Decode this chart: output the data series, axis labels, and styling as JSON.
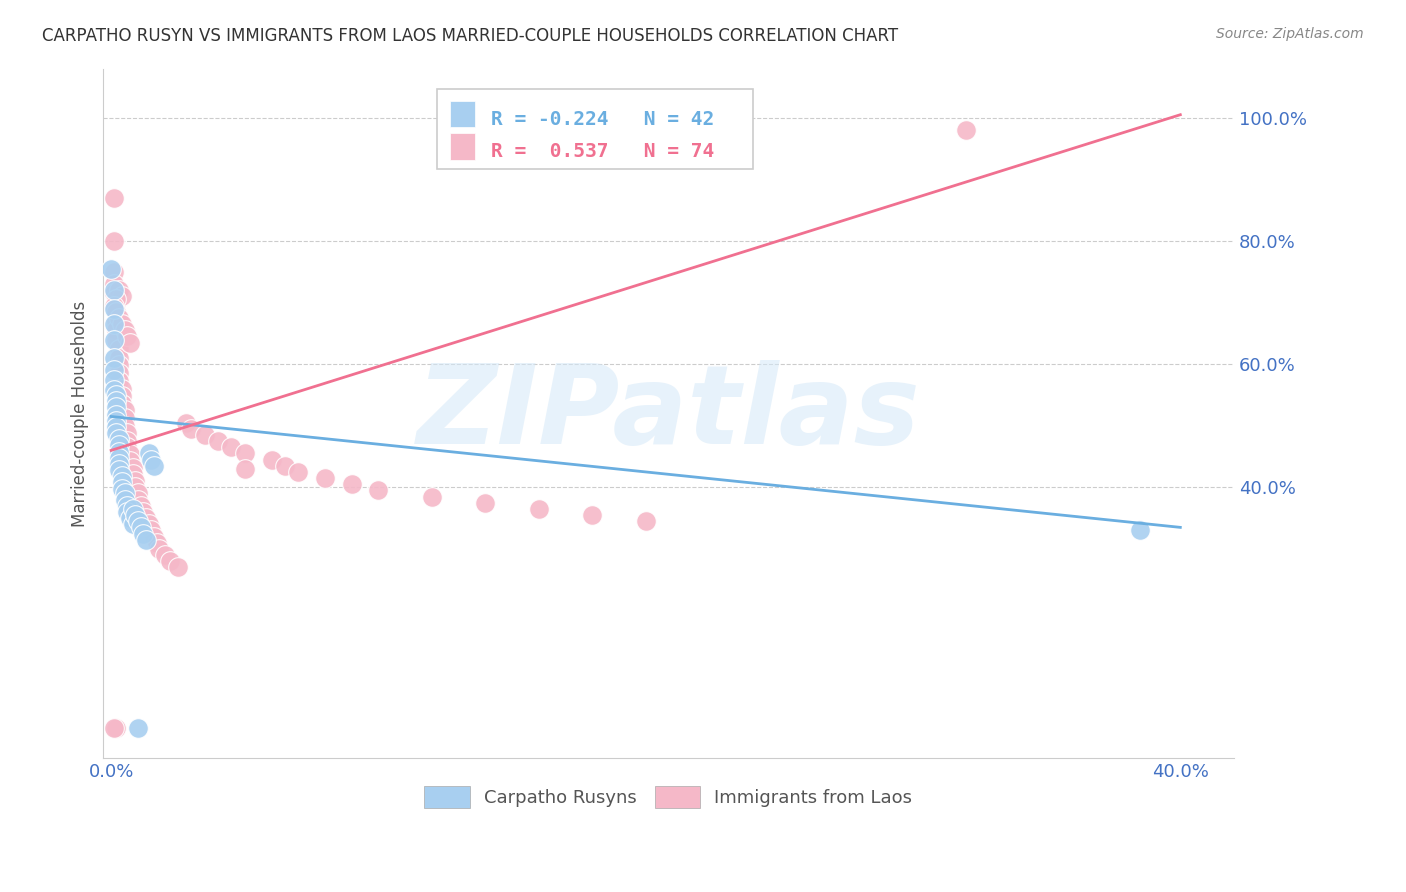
{
  "title": "CARPATHO RUSYN VS IMMIGRANTS FROM LAOS MARRIED-COUPLE HOUSEHOLDS CORRELATION CHART",
  "source": "Source: ZipAtlas.com",
  "ylabel": "Married-couple Households",
  "xlim": [
    -0.003,
    0.42
  ],
  "ylim": [
    -0.04,
    1.08
  ],
  "blue_color": "#a8cff0",
  "pink_color": "#f5b8c8",
  "blue_line_color": "#6aaee0",
  "pink_line_color": "#f07090",
  "watermark_text": "ZIPatlas",
  "legend_blue_R": "-0.224",
  "legend_blue_N": "42",
  "legend_pink_R": "0.537",
  "legend_pink_N": "74",
  "background_color": "#ffffff",
  "grid_color": "#cccccc",
  "title_color": "#333333",
  "axis_label_color": "#4472c4",
  "blue_line_x0": 0.0,
  "blue_line_y0": 0.515,
  "blue_line_x1": 0.4,
  "blue_line_y1": 0.335,
  "pink_line_x0": 0.0,
  "pink_line_y0": 0.46,
  "pink_line_x1": 0.4,
  "pink_line_y1": 1.005,
  "blue_scatter_x": [
    0.0,
    0.001,
    0.001,
    0.001,
    0.001,
    0.001,
    0.001,
    0.001,
    0.001,
    0.002,
    0.002,
    0.002,
    0.002,
    0.002,
    0.002,
    0.002,
    0.003,
    0.003,
    0.003,
    0.003,
    0.003,
    0.003,
    0.004,
    0.004,
    0.004,
    0.005,
    0.005,
    0.006,
    0.006,
    0.007,
    0.008,
    0.008,
    0.009,
    0.01,
    0.011,
    0.012,
    0.013,
    0.014,
    0.015,
    0.016,
    0.385,
    0.01
  ],
  "blue_scatter_y": [
    0.755,
    0.72,
    0.69,
    0.665,
    0.64,
    0.61,
    0.59,
    0.575,
    0.558,
    0.55,
    0.54,
    0.53,
    0.518,
    0.508,
    0.498,
    0.488,
    0.478,
    0.468,
    0.458,
    0.448,
    0.438,
    0.428,
    0.418,
    0.408,
    0.398,
    0.39,
    0.38,
    0.37,
    0.36,
    0.35,
    0.34,
    0.365,
    0.355,
    0.345,
    0.335,
    0.325,
    0.315,
    0.455,
    0.445,
    0.435,
    0.33,
    0.01
  ],
  "pink_scatter_x": [
    0.001,
    0.001,
    0.001,
    0.001,
    0.001,
    0.002,
    0.002,
    0.002,
    0.002,
    0.002,
    0.003,
    0.003,
    0.003,
    0.003,
    0.003,
    0.004,
    0.004,
    0.004,
    0.005,
    0.005,
    0.005,
    0.006,
    0.006,
    0.006,
    0.007,
    0.007,
    0.008,
    0.008,
    0.009,
    0.009,
    0.01,
    0.01,
    0.011,
    0.012,
    0.013,
    0.014,
    0.015,
    0.016,
    0.017,
    0.018,
    0.02,
    0.022,
    0.025,
    0.028,
    0.03,
    0.035,
    0.04,
    0.045,
    0.05,
    0.06,
    0.065,
    0.07,
    0.08,
    0.09,
    0.1,
    0.12,
    0.14,
    0.16,
    0.18,
    0.2,
    0.003,
    0.004,
    0.002,
    0.001,
    0.002,
    0.003,
    0.004,
    0.005,
    0.006,
    0.007,
    0.32,
    0.05,
    0.002,
    0.001
  ],
  "pink_scatter_y": [
    0.87,
    0.8,
    0.75,
    0.73,
    0.715,
    0.7,
    0.685,
    0.67,
    0.655,
    0.64,
    0.625,
    0.61,
    0.598,
    0.585,
    0.572,
    0.56,
    0.548,
    0.535,
    0.525,
    0.512,
    0.5,
    0.488,
    0.476,
    0.465,
    0.454,
    0.443,
    0.432,
    0.421,
    0.411,
    0.4,
    0.39,
    0.38,
    0.37,
    0.36,
    0.35,
    0.34,
    0.33,
    0.32,
    0.31,
    0.3,
    0.29,
    0.28,
    0.27,
    0.505,
    0.495,
    0.485,
    0.475,
    0.465,
    0.455,
    0.445,
    0.435,
    0.425,
    0.415,
    0.405,
    0.395,
    0.385,
    0.375,
    0.365,
    0.355,
    0.345,
    0.72,
    0.71,
    0.705,
    0.695,
    0.685,
    0.675,
    0.665,
    0.655,
    0.645,
    0.635,
    0.98,
    0.43,
    0.01,
    0.01
  ]
}
